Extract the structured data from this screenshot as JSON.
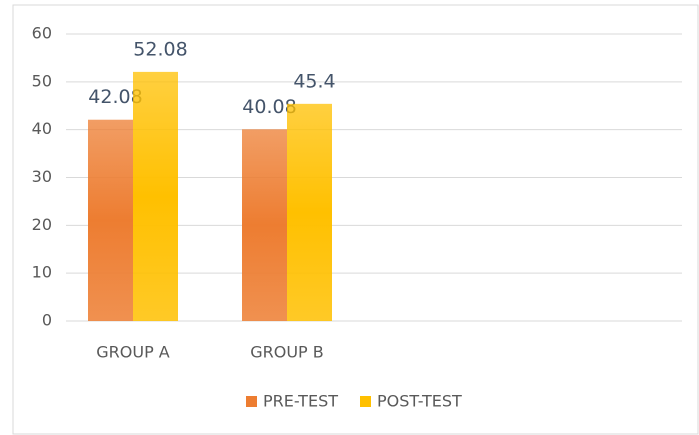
{
  "chart_data": {
    "type": "bar",
    "categories": [
      "GROUP A",
      "GROUP B",
      null,
      null
    ],
    "series": [
      {
        "name": "PRE-TEST",
        "color": "#ed7d31",
        "values": [
          42.08,
          40.08,
          null,
          null
        ]
      },
      {
        "name": "POST-TEST",
        "color": "#ffc000",
        "values": [
          52.08,
          45.4,
          null,
          null
        ]
      }
    ],
    "ylim": [
      0,
      60
    ],
    "yticks": [
      0,
      10,
      20,
      30,
      40,
      50,
      60
    ],
    "grid": true,
    "legend": "bottom"
  }
}
